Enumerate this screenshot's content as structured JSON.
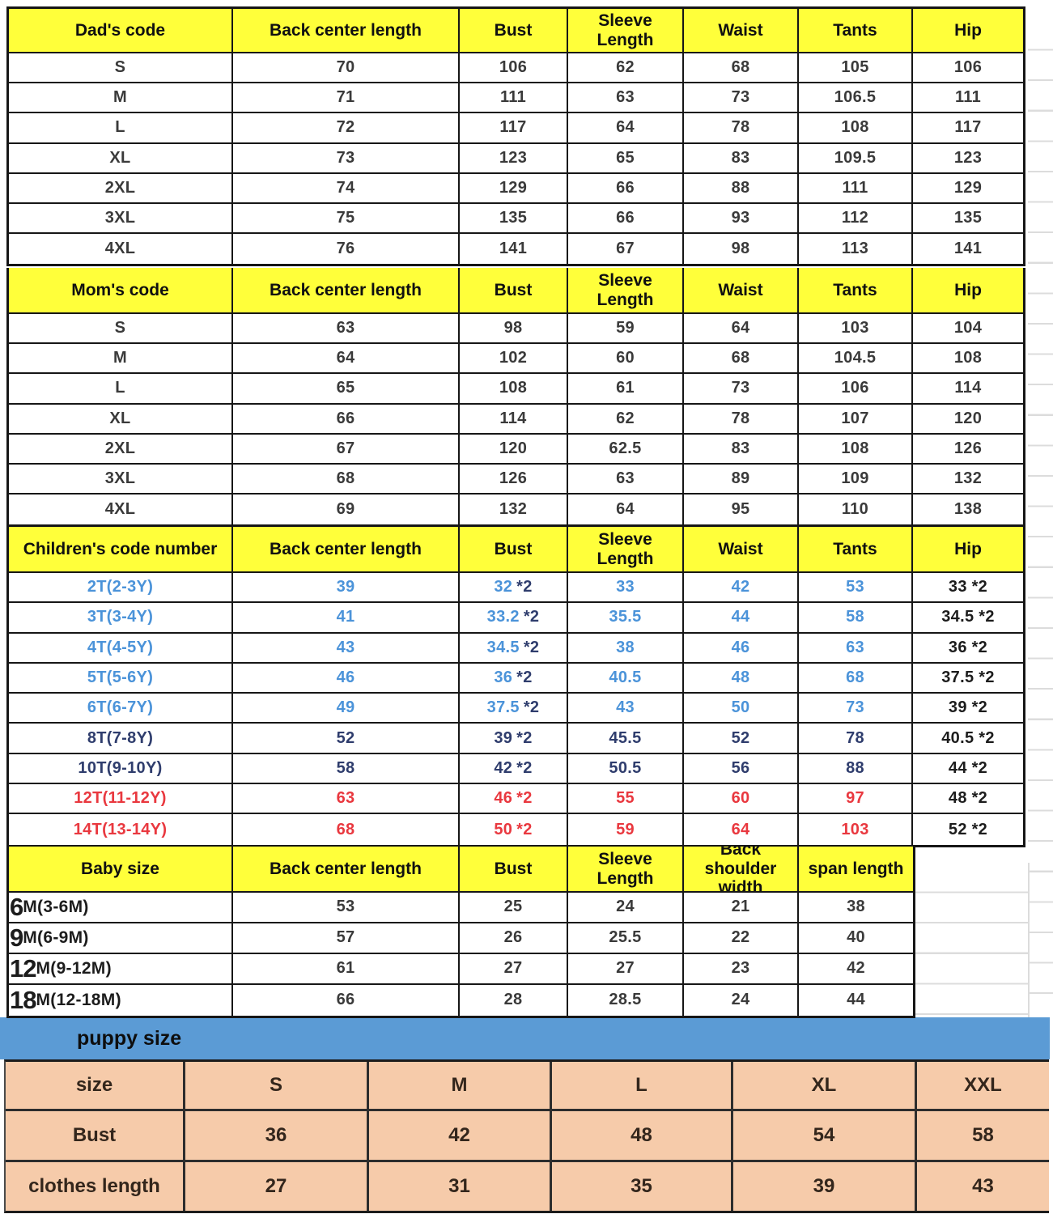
{
  "colors": {
    "header_yellow": "#ffff3a",
    "band_blue": "#5b9bd5",
    "peach": "#f6cbaa",
    "ink_blue": "#4b93d9",
    "ink_navy": "#2f3d6d",
    "ink_red": "#e9383f",
    "ink_dark": "#3a3a3a",
    "ink_black": "#1c1c1c",
    "grid_black": "#161616",
    "faint_gray": "#dcdcdc"
  },
  "sections": [
    {
      "id": "dad",
      "headers": [
        "Dad's code",
        "Back center length",
        "Bust",
        "Sleeve\nLength",
        "Waist",
        "Tants",
        "Hip"
      ],
      "rows": [
        {
          "color": "dark",
          "cells": [
            "S",
            "70",
            "106",
            "62",
            "68",
            "105",
            "106"
          ]
        },
        {
          "color": "dark",
          "cells": [
            "M",
            "71",
            "111",
            "63",
            "73",
            "106.5",
            "111"
          ]
        },
        {
          "color": "dark",
          "cells": [
            "L",
            "72",
            "117",
            "64",
            "78",
            "108",
            "117"
          ]
        },
        {
          "color": "dark",
          "cells": [
            "XL",
            "73",
            "123",
            "65",
            "83",
            "109.5",
            "123"
          ]
        },
        {
          "color": "dark",
          "cells": [
            "2XL",
            "74",
            "129",
            "66",
            "88",
            "111",
            "129"
          ]
        },
        {
          "color": "dark",
          "cells": [
            "3XL",
            "75",
            "135",
            "66",
            "93",
            "112",
            "135"
          ]
        },
        {
          "color": "dark",
          "cells": [
            "4XL",
            "76",
            "141",
            "67",
            "98",
            "113",
            "141"
          ]
        }
      ]
    },
    {
      "id": "mom",
      "headers": [
        "Mom's code",
        "Back center length",
        "Bust",
        "Sleeve\nLength",
        "Waist",
        "Tants",
        "Hip"
      ],
      "rows": [
        {
          "color": "dark",
          "cells": [
            "S",
            "63",
            "98",
            "59",
            "64",
            "103",
            "104"
          ]
        },
        {
          "color": "dark",
          "cells": [
            "M",
            "64",
            "102",
            "60",
            "68",
            "104.5",
            "108"
          ]
        },
        {
          "color": "dark",
          "cells": [
            "L",
            "65",
            "108",
            "61",
            "73",
            "106",
            "114"
          ]
        },
        {
          "color": "dark",
          "cells": [
            "XL",
            "66",
            "114",
            "62",
            "78",
            "107",
            "120"
          ]
        },
        {
          "color": "dark",
          "cells": [
            "2XL",
            "67",
            "120",
            "62.5",
            "83",
            "108",
            "126"
          ]
        },
        {
          "color": "dark",
          "cells": [
            "3XL",
            "68",
            "126",
            "63",
            "89",
            "109",
            "132"
          ]
        },
        {
          "color": "dark",
          "cells": [
            "4XL",
            "69",
            "132",
            "64",
            "95",
            "110",
            "138"
          ]
        }
      ]
    },
    {
      "id": "children",
      "headers": [
        "Children's code number",
        "Back center length",
        "Bust",
        "Sleeve\nLength",
        "Waist",
        "Tants",
        "Hip"
      ],
      "rows": [
        {
          "color": "blue",
          "cells": [
            "2T(2-3Y)",
            "39",
            "32 *2",
            "33",
            "42",
            "53",
            "33 *2"
          ]
        },
        {
          "color": "blue",
          "cells": [
            "3T(3-4Y)",
            "41",
            "33.2 *2",
            "35.5",
            "44",
            "58",
            "34.5 *2"
          ]
        },
        {
          "color": "blue",
          "cells": [
            "4T(4-5Y)",
            "43",
            "34.5 *2",
            "38",
            "46",
            "63",
            "36 *2"
          ]
        },
        {
          "color": "blue",
          "cells": [
            "5T(5-6Y)",
            "46",
            "36 *2",
            "40.5",
            "48",
            "68",
            "37.5 *2"
          ]
        },
        {
          "color": "blue",
          "cells": [
            "6T(6-7Y)",
            "49",
            "37.5 *2",
            "43",
            "50",
            "73",
            "39 *2"
          ]
        },
        {
          "color": "navy",
          "cells": [
            "8T(7-8Y)",
            "52",
            "39 *2",
            "45.5",
            "52",
            "78",
            "40.5 *2"
          ]
        },
        {
          "color": "navy",
          "cells": [
            "10T(9-10Y)",
            "58",
            "42 *2",
            "50.5",
            "56",
            "88",
            "44 *2"
          ]
        },
        {
          "color": "red",
          "cells": [
            "12T(11-12Y)",
            "63",
            "46 *2",
            "55",
            "60",
            "97",
            "48 *2"
          ]
        },
        {
          "color": "red",
          "cells": [
            "14T(13-14Y)",
            "68",
            "50 *2",
            "59",
            "64",
            "103",
            "52 *2"
          ]
        }
      ]
    },
    {
      "id": "baby",
      "headers": [
        "Baby size",
        "Back center length",
        "Bust",
        "Sleeve\nLength",
        "Back\nshoulder width",
        "span length"
      ],
      "rows": [
        {
          "color": "dark",
          "label_big": "6",
          "label_rest": "M(3-6M)",
          "cells": [
            "53",
            "25",
            "24",
            "21",
            "38"
          ]
        },
        {
          "color": "dark",
          "label_big": "9",
          "label_rest": "M(6-9M)",
          "cells": [
            "57",
            "26",
            "25.5",
            "22",
            "40"
          ]
        },
        {
          "color": "dark",
          "label_big": "12",
          "label_rest": "M(9-12M)",
          "cells": [
            "61",
            "27",
            "27",
            "23",
            "42"
          ]
        },
        {
          "color": "dark",
          "label_big": "18",
          "label_rest": "M(12-18M)",
          "cells": [
            "66",
            "28",
            "28.5",
            "24",
            "44"
          ]
        }
      ]
    }
  ],
  "puppy": {
    "band_label": "puppy size",
    "rows": [
      [
        "size",
        "S",
        "M",
        "L",
        "XL",
        "XXL"
      ],
      [
        "Bust",
        "36",
        "42",
        "48",
        "54",
        "58"
      ],
      [
        "clothes length",
        "27",
        "31",
        "35",
        "39",
        "43"
      ]
    ]
  }
}
